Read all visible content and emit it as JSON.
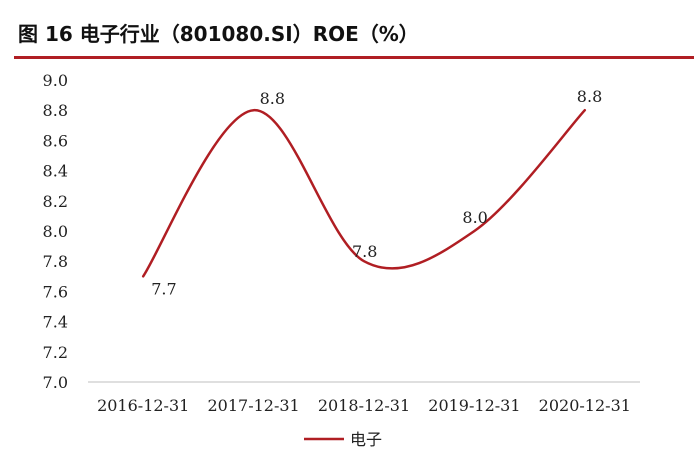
{
  "chart_data": {
    "type": "line",
    "title": "图 16 电子行业（801080.SI）ROE（%）",
    "categories": [
      "2016-12-31",
      "2017-12-31",
      "2018-12-31",
      "2019-12-31",
      "2020-12-31"
    ],
    "series": [
      {
        "name": "电子",
        "values": [
          7.7,
          8.8,
          7.8,
          8.0,
          8.8
        ],
        "labels": [
          "7.7",
          "8.8",
          "7.8",
          "8.0",
          "8.8"
        ]
      }
    ],
    "ylim": [
      7.0,
      9.0
    ],
    "yticks": [
      "7.0",
      "7.2",
      "7.4",
      "7.6",
      "7.8",
      "8.0",
      "8.2",
      "8.4",
      "8.6",
      "8.8",
      "9.0"
    ],
    "grid": false,
    "smooth": true,
    "legend_position": "bottom",
    "colors": {
      "series": "#b01e23",
      "accent": "#b01e23"
    }
  }
}
